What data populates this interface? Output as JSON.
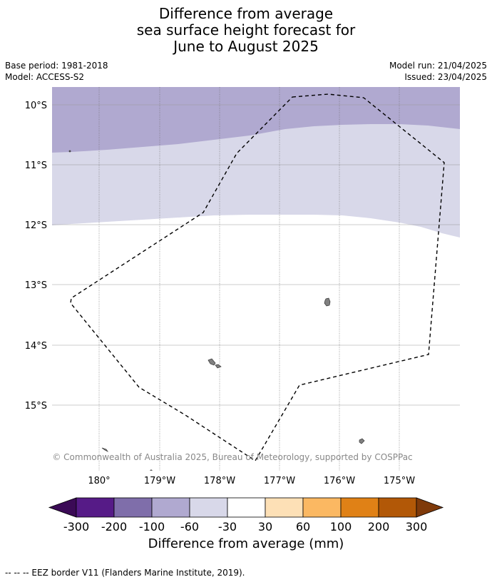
{
  "title": {
    "line1": "Difference from average",
    "line2": "sea surface height forecast for",
    "line3": "June to August 2025"
  },
  "meta": {
    "base_period": "Base period: 1981-2018",
    "model": "Model: ACCESS-S2",
    "model_run": "Model run: 21/04/2025",
    "issued": "Issued: 23/04/2025"
  },
  "map": {
    "lat_labels": [
      "10°S",
      "11°S",
      "12°S",
      "13°S",
      "14°S",
      "15°S"
    ],
    "lon_labels": [
      "180°",
      "179°W",
      "178°W",
      "177°W",
      "176°W",
      "175°W"
    ],
    "copyright": "© Commonwealth of Australia 2025, Bureau of Meteorology, supported by COSPPac",
    "colors": {
      "band_minus_100": "#b0a9d0",
      "band_minus_60": "#d8d8e9",
      "land": "#808080",
      "eez": "#000000"
    }
  },
  "colorbar": {
    "ticks": [
      "-300",
      "-200",
      "-100",
      "-60",
      "-30",
      "30",
      "60",
      "100",
      "200",
      "300"
    ],
    "colors": [
      "#561b87",
      "#7f6eaa",
      "#b0a9d0",
      "#d8d8e9",
      "#ffffff",
      "#fde0b6",
      "#fbb862",
      "#e08116",
      "#b25807"
    ],
    "under_color": "#3b0a56",
    "over_color": "#7f3a0a",
    "label": "Difference from average (mm)"
  },
  "legend": {
    "eez": "--  --  -- EEZ border V11 (Flanders Marine Institute, 2019)."
  }
}
